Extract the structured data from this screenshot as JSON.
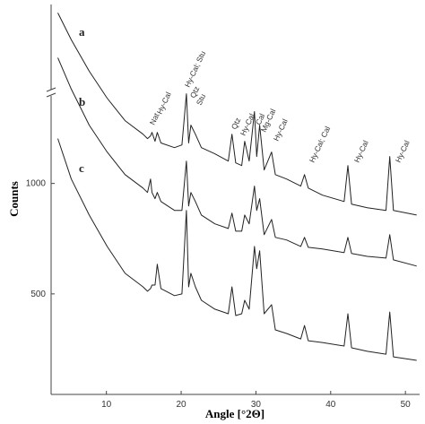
{
  "chart_data": {
    "type": "line",
    "x_label": "Angle [°2Θ]",
    "y_label": "Counts",
    "x": [
      3.5,
      5.3,
      7.7,
      10.1,
      12.5,
      14.9,
      15.5,
      15.9,
      16.1,
      16.5,
      16.8,
      17.3,
      19.1,
      20.1,
      20.7,
      21.0,
      21.3,
      21.9,
      22.7,
      24.5,
      26.3,
      26.8,
      27.3,
      28.1,
      28.5,
      29.1,
      29.8,
      30.1,
      30.5,
      31.1,
      32.1,
      32.6,
      34.1,
      36.0,
      36.5,
      37.0,
      38.9,
      41.8,
      42.3,
      42.8,
      44.9,
      47.4,
      47.9,
      48.4,
      51.5
    ],
    "series": [
      {
        "name": "a",
        "color": "#222222",
        "values": [
          1772,
          1650,
          1508,
          1386,
          1284,
          1223,
          1203,
          1215,
          1231,
          1191,
          1231,
          1183,
          1162,
          1174,
          1406,
          1183,
          1264,
          1223,
          1162,
          1134,
          1101,
          1223,
          1093,
          1081,
          1191,
          1101,
          1325,
          1122,
          1264,
          1061,
          1142,
          1040,
          1020,
          988,
          1040,
          979,
          947,
          918,
          1081,
          906,
          890,
          878,
          1122,
          878,
          857
        ]
      },
      {
        "name": "b",
        "color": "#222222",
        "values": [
          1569,
          1427,
          1264,
          1142,
          1040,
          979,
          959,
          1020,
          959,
          931,
          959,
          918,
          878,
          878,
          1101,
          898,
          959,
          918,
          857,
          817,
          796,
          866,
          784,
          784,
          857,
          817,
          988,
          878,
          931,
          768,
          837,
          756,
          744,
          715,
          756,
          711,
          703,
          687,
          756,
          683,
          670,
          662,
          768,
          654,
          626
        ]
      },
      {
        "name": "c",
        "color": "#222222",
        "values": [
          1203,
          1020,
          857,
          715,
          593,
          532,
          512,
          524,
          540,
          540,
          634,
          524,
          492,
          500,
          878,
          532,
          593,
          532,
          471,
          431,
          410,
          532,
          402,
          410,
          471,
          431,
          715,
          614,
          695,
          410,
          451,
          337,
          321,
          296,
          357,
          288,
          280,
          264,
          410,
          256,
          240,
          227,
          418,
          215,
          199
        ]
      }
    ],
    "annotations": [
      "Nat",
      "Hy-Cal",
      "Hy-Cal; Stu",
      "Qtz",
      "Stu",
      "Qtz",
      "Hy-Cal",
      "Cal",
      "Mg-Cal",
      "Hy-Cal",
      "Hy-Cal; Cal",
      "Hy-Cal",
      "Hy-Cal"
    ],
    "xlim": [
      2.6,
      51.9
    ],
    "ylim": [
      45,
      1810
    ],
    "xticks": [
      10,
      20,
      30,
      40,
      50
    ],
    "yticks": [
      500,
      1000
    ]
  }
}
